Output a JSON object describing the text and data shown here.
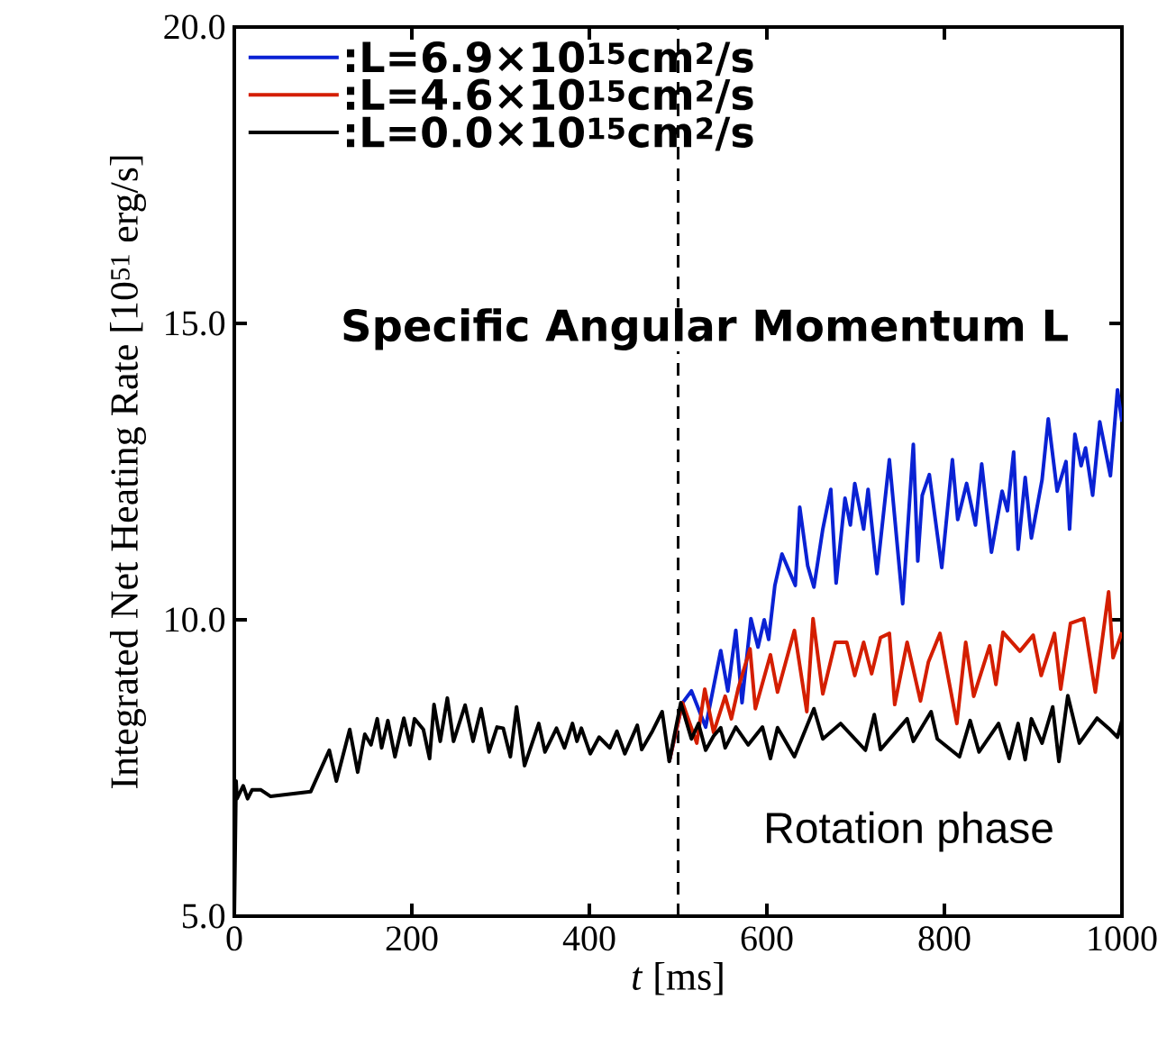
{
  "chart_data": {
    "type": "line",
    "xlabel": "*t* [ms]",
    "ylabel": "Integrated Net Heating Rate [10$^{51}$ erg/s]",
    "xlim": [
      0,
      1000
    ],
    "ylim": [
      5,
      20
    ],
    "xticks": [
      0,
      200,
      400,
      600,
      800,
      1000
    ],
    "yticks": [
      {
        "value": 5,
        "label": "5.0"
      },
      {
        "value": 10,
        "label": "10.0"
      },
      {
        "value": 15,
        "label": "15.0"
      },
      {
        "value": 20,
        "label": "20.0"
      }
    ],
    "legend": "top left",
    "grid": false,
    "line_style": "solid",
    "marker": "none",
    "ref_lines": [
      {
        "axis": "x",
        "value": 500,
        "color": "#000000",
        "line_style": "dashed"
      }
    ],
    "annotations": [
      "Specific Angular Momentum L",
      "Rotation phase"
    ],
    "series": [
      {
        "name": ":L=6.9×10$^{15}$cm$^{2}$/s",
        "color": "#0a22d4",
        "x": [
          490,
          505,
          515,
          531,
          548,
          556,
          565,
          572,
          582,
          590,
          597,
          602,
          609,
          617,
          632,
          637,
          646,
          653,
          663,
          672,
          678,
          688,
          694,
          699,
          709,
          714,
          724,
          738,
          753,
          765,
          770,
          775,
          783,
          797,
          809,
          815,
          825,
          835,
          842,
          853,
          865,
          871,
          878,
          883,
          891,
          898,
          910,
          917,
          927,
          937,
          941,
          947,
          954,
          959,
          967,
          975,
          987,
          995,
          1000
        ],
        "values": [
          7.61,
          8.6,
          8.8,
          8.19,
          9.48,
          8.8,
          9.82,
          8.6,
          10.02,
          9.54,
          10.0,
          9.67,
          10.58,
          11.11,
          10.58,
          11.9,
          10.91,
          10.55,
          11.53,
          12.2,
          10.62,
          12.05,
          11.6,
          12.3,
          11.53,
          12.2,
          10.78,
          12.7,
          10.27,
          12.96,
          10.99,
          12.1,
          12.45,
          10.88,
          12.7,
          11.69,
          12.3,
          11.6,
          12.63,
          11.14,
          12.17,
          11.84,
          12.83,
          11.19,
          12.4,
          11.38,
          12.36,
          13.39,
          12.17,
          12.67,
          11.53,
          13.13,
          12.6,
          12.9,
          12.1,
          13.34,
          12.43,
          13.88,
          13.34
        ]
      },
      {
        "name": ":L=4.6×10$^{15}$cm$^{2}$/s",
        "color": "#d41e00",
        "x": [
          490,
          505,
          521,
          530,
          540,
          553,
          560,
          568,
          581,
          587,
          604,
          612,
          631,
          645,
          652,
          663,
          677,
          690,
          699,
          709,
          718,
          728,
          738,
          744,
          758,
          773,
          782,
          795,
          814,
          824,
          833,
          851,
          858,
          866,
          885,
          900,
          909,
          924,
          931,
          942,
          957,
          970,
          985,
          990,
          1000
        ],
        "values": [
          7.61,
          8.6,
          7.92,
          8.83,
          8.1,
          8.71,
          8.33,
          8.86,
          9.51,
          8.5,
          9.41,
          8.78,
          9.82,
          8.45,
          10.02,
          8.75,
          9.62,
          9.62,
          9.06,
          9.62,
          9.09,
          9.7,
          9.77,
          8.57,
          9.62,
          8.63,
          9.29,
          9.77,
          8.25,
          9.62,
          8.71,
          9.56,
          8.91,
          9.79,
          9.47,
          9.74,
          9.06,
          9.77,
          8.83,
          9.94,
          10.02,
          8.78,
          10.47,
          9.36,
          9.79
        ]
      },
      {
        "name": ":L=0.0×10$^{15}$cm$^{2}$/s",
        "color": "#000000",
        "x": [
          0,
          2,
          3,
          10,
          15,
          20,
          30,
          41,
          58,
          86,
          107,
          115,
          130,
          139,
          147,
          154,
          161,
          166,
          173,
          181,
          191,
          198,
          203,
          213,
          220,
          225,
          232,
          240,
          247,
          260,
          269,
          278,
          287,
          296,
          303,
          311,
          318,
          327,
          343,
          350,
          363,
          372,
          381,
          386,
          391,
          401,
          411,
          423,
          431,
          440,
          454,
          459,
          471,
          482,
          490,
          503,
          515,
          523,
          531,
          540,
          548,
          553,
          565,
          579,
          595,
          604,
          612,
          631,
          653,
          663,
          683,
          711,
          721,
          728,
          758,
          765,
          785,
          792,
          817,
          829,
          839,
          861,
          873,
          883,
          891,
          898,
          910,
          922,
          929,
          939,
          952,
          972,
          985,
          995,
          1000
        ],
        "values": [
          5.0,
          7.28,
          6.98,
          7.2,
          6.98,
          7.13,
          7.13,
          7.02,
          7.05,
          7.1,
          7.8,
          7.28,
          8.15,
          7.43,
          8.07,
          7.89,
          8.33,
          7.84,
          8.3,
          7.69,
          8.34,
          7.89,
          8.33,
          8.15,
          7.66,
          8.57,
          7.95,
          8.68,
          7.95,
          8.56,
          7.95,
          8.5,
          7.77,
          8.19,
          8.17,
          7.69,
          8.53,
          7.54,
          8.25,
          7.77,
          8.17,
          7.84,
          8.25,
          7.95,
          8.17,
          7.74,
          8.02,
          7.84,
          8.12,
          7.74,
          8.22,
          7.81,
          8.12,
          8.45,
          7.61,
          8.6,
          7.99,
          8.25,
          7.8,
          8.04,
          8.18,
          7.84,
          8.19,
          7.89,
          8.19,
          7.66,
          8.18,
          7.69,
          8.5,
          7.99,
          8.25,
          7.8,
          8.4,
          7.81,
          8.33,
          7.95,
          8.45,
          7.99,
          7.69,
          8.3,
          7.77,
          8.25,
          7.66,
          8.25,
          7.64,
          8.33,
          7.92,
          8.53,
          7.61,
          8.72,
          7.92,
          8.34,
          8.17,
          8.02,
          8.3
        ]
      }
    ]
  }
}
